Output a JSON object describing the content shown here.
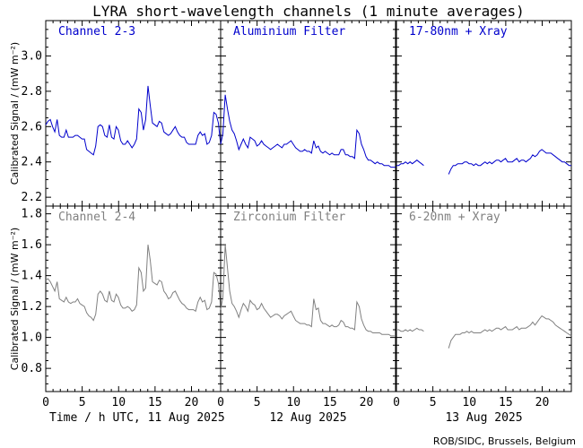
{
  "title": "LYRA short-wavelength channels (1 minute averages)",
  "credit": "ROB/SIDC, Brussels, Belgium",
  "colors": {
    "top": "#0000cc",
    "bottom": "#808080",
    "axis": "#000000"
  },
  "chart_data": {
    "type": "line",
    "ylabel": "Calibrated Signal / (mW m⁻²)",
    "x_ticks": [
      0,
      5,
      10,
      15,
      20
    ],
    "x_range_hours": [
      0,
      24
    ],
    "day_labels": [
      "Time / h UTC, 11 Aug 2025",
      "12 Aug 2025",
      "13 Aug 2025"
    ],
    "rows": [
      {
        "ylim": [
          2.15,
          3.2
        ],
        "yticks": [
          2.2,
          2.4,
          2.6,
          2.8,
          3.0
        ],
        "panels": [
          {
            "label": "Channel 2-3",
            "values": [
              2.61,
              2.63,
              2.64,
              2.6,
              2.57,
              2.64,
              2.55,
              2.54,
              2.54,
              2.58,
              2.54,
              2.54,
              2.54,
              2.55,
              2.55,
              2.54,
              2.53,
              2.53,
              2.47,
              2.46,
              2.45,
              2.44,
              2.49,
              2.6,
              2.61,
              2.6,
              2.55,
              2.54,
              2.61,
              2.54,
              2.53,
              2.6,
              2.58,
              2.52,
              2.5,
              2.5,
              2.52,
              2.5,
              2.48,
              2.5,
              2.53,
              2.7,
              2.68,
              2.58,
              2.64,
              2.83,
              2.72,
              2.62,
              2.61,
              2.6,
              2.63,
              2.62,
              2.57,
              2.56,
              2.55,
              2.56,
              2.58,
              2.6,
              2.57,
              2.55,
              2.54,
              2.54,
              2.51,
              2.5,
              2.5,
              2.5,
              2.5,
              2.55,
              2.57,
              2.55,
              2.56,
              2.5,
              2.51,
              2.55,
              2.68,
              2.67,
              2.62,
              2.5
            ]
          },
          {
            "label": "Aluminium Filter",
            "values": [
              2.5,
              2.56,
              2.78,
              2.7,
              2.63,
              2.58,
              2.56,
              2.52,
              2.47,
              2.5,
              2.53,
              2.5,
              2.48,
              2.54,
              2.53,
              2.52,
              2.49,
              2.5,
              2.52,
              2.5,
              2.49,
              2.48,
              2.47,
              2.48,
              2.49,
              2.5,
              2.49,
              2.48,
              2.5,
              2.5,
              2.51,
              2.52,
              2.5,
              2.48,
              2.47,
              2.46,
              2.46,
              2.47,
              2.46,
              2.46,
              2.45,
              2.52,
              2.48,
              2.49,
              2.46,
              2.45,
              2.46,
              2.45,
              2.44,
              2.45,
              2.44,
              2.44,
              2.44,
              2.47,
              2.47,
              2.44,
              2.44,
              2.43,
              2.43,
              2.42,
              2.58,
              2.56,
              2.5,
              2.47,
              2.43,
              2.41,
              2.41,
              2.4,
              2.39,
              2.4,
              2.39,
              2.39,
              2.38,
              2.38,
              2.38,
              2.37,
              2.37,
              2.37
            ]
          },
          {
            "label": "17-80nm + Xray",
            "values": [
              2.38,
              2.38,
              2.39,
              2.39,
              2.4,
              2.39,
              2.4,
              2.39,
              2.4,
              2.41,
              2.4,
              2.39,
              2.38,
              null,
              null,
              null,
              null,
              null,
              null,
              null,
              null,
              null,
              null,
              2.33,
              2.36,
              2.38,
              2.38,
              2.39,
              2.39,
              2.39,
              2.4,
              2.4,
              2.39,
              2.39,
              2.38,
              2.39,
              2.38,
              2.38,
              2.39,
              2.4,
              2.39,
              2.4,
              2.39,
              2.4,
              2.41,
              2.41,
              2.4,
              2.41,
              2.42,
              2.4,
              2.4,
              2.4,
              2.41,
              2.42,
              2.4,
              2.41,
              2.41,
              2.4,
              2.41,
              2.42,
              2.44,
              2.43,
              2.44,
              2.46,
              2.47,
              2.46,
              2.45,
              2.45,
              2.45,
              2.44,
              2.43,
              2.42,
              2.41,
              2.4,
              2.4,
              2.39,
              2.38,
              2.38
            ]
          }
        ]
      },
      {
        "ylim": [
          0.65,
          1.85
        ],
        "yticks": [
          0.8,
          1.0,
          1.2,
          1.4,
          1.6,
          1.8
        ],
        "panels": [
          {
            "label": "Channel 2-4",
            "values": [
              1.37,
              1.38,
              1.36,
              1.33,
              1.3,
              1.36,
              1.25,
              1.24,
              1.23,
              1.26,
              1.23,
              1.22,
              1.23,
              1.23,
              1.25,
              1.22,
              1.21,
              1.2,
              1.16,
              1.14,
              1.13,
              1.11,
              1.15,
              1.28,
              1.3,
              1.28,
              1.24,
              1.23,
              1.3,
              1.24,
              1.23,
              1.28,
              1.26,
              1.21,
              1.19,
              1.19,
              1.2,
              1.19,
              1.17,
              1.18,
              1.21,
              1.45,
              1.42,
              1.3,
              1.32,
              1.6,
              1.5,
              1.36,
              1.35,
              1.34,
              1.37,
              1.36,
              1.3,
              1.28,
              1.25,
              1.26,
              1.29,
              1.3,
              1.27,
              1.24,
              1.22,
              1.21,
              1.19,
              1.18,
              1.18,
              1.18,
              1.17,
              1.23,
              1.26,
              1.23,
              1.24,
              1.18,
              1.19,
              1.23,
              1.42,
              1.41,
              1.35,
              1.2
            ]
          },
          {
            "label": "Zirconium Filter",
            "values": [
              1.18,
              1.26,
              1.6,
              1.45,
              1.3,
              1.22,
              1.2,
              1.17,
              1.13,
              1.18,
              1.22,
              1.2,
              1.17,
              1.24,
              1.22,
              1.21,
              1.18,
              1.19,
              1.22,
              1.19,
              1.17,
              1.15,
              1.13,
              1.14,
              1.15,
              1.15,
              1.14,
              1.12,
              1.14,
              1.15,
              1.16,
              1.17,
              1.14,
              1.11,
              1.1,
              1.09,
              1.09,
              1.09,
              1.08,
              1.08,
              1.07,
              1.25,
              1.18,
              1.19,
              1.11,
              1.09,
              1.09,
              1.08,
              1.07,
              1.08,
              1.07,
              1.07,
              1.08,
              1.11,
              1.1,
              1.07,
              1.07,
              1.06,
              1.06,
              1.05,
              1.23,
              1.2,
              1.12,
              1.08,
              1.05,
              1.04,
              1.04,
              1.03,
              1.03,
              1.03,
              1.03,
              1.02,
              1.02,
              1.02,
              1.02,
              1.01,
              1.01,
              1.01
            ]
          },
          {
            "label": "6-20nm + Xray",
            "values": [
              1.05,
              1.05,
              1.04,
              1.04,
              1.05,
              1.04,
              1.05,
              1.04,
              1.05,
              1.06,
              1.05,
              1.05,
              1.04,
              null,
              null,
              null,
              null,
              null,
              null,
              null,
              null,
              null,
              null,
              0.93,
              0.98,
              1.0,
              1.02,
              1.02,
              1.02,
              1.03,
              1.03,
              1.04,
              1.03,
              1.04,
              1.03,
              1.03,
              1.03,
              1.03,
              1.04,
              1.05,
              1.04,
              1.05,
              1.04,
              1.05,
              1.06,
              1.06,
              1.05,
              1.06,
              1.07,
              1.05,
              1.05,
              1.05,
              1.06,
              1.07,
              1.05,
              1.06,
              1.06,
              1.06,
              1.07,
              1.08,
              1.1,
              1.08,
              1.1,
              1.12,
              1.14,
              1.13,
              1.12,
              1.12,
              1.11,
              1.1,
              1.08,
              1.07,
              1.06,
              1.05,
              1.04,
              1.03,
              1.02,
              1.01
            ]
          }
        ]
      }
    ]
  }
}
